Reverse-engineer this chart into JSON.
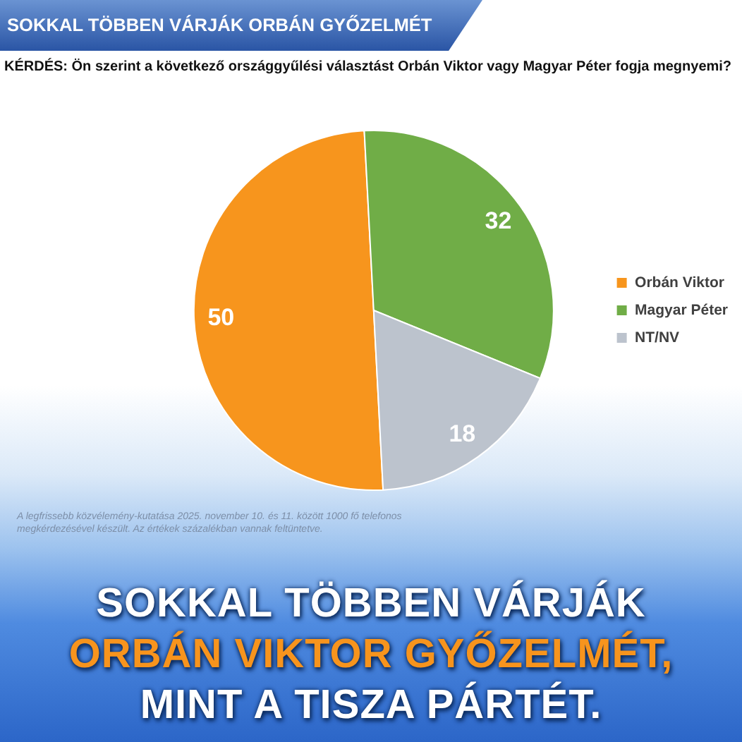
{
  "chart_data": {
    "type": "pie",
    "title": "SOKKAL TÖBBEN VÁRJÁK ORBÁN GYŐZELMÉT",
    "subtitle": "KÉRDÉS: Ön szerint a következő országgyűlési választást Orbán Viktor vagy Magyar Péter fogja megnyemi?",
    "categories": [
      "Orbán Viktor",
      "Magyar Péter",
      "NT/NV"
    ],
    "values": [
      50,
      32,
      18
    ],
    "colors": [
      "#f7951d",
      "#70ad47",
      "#bcc3cd"
    ],
    "data_labels": true,
    "legend": "right",
    "annotations": [
      "A legfrissebb közvélemény-kutatása 2025. november 10. és 11. között 1000 fő telefonos megkérdezésével készült. Az értékek százalékban vannak feltüntetve.",
      "SOKKAL TÖBBEN VÁRJÁK",
      "ORBÁN VIKTOR GYŐZELMÉT,",
      "MINT A TISZA PÁRTÉT."
    ]
  }
}
